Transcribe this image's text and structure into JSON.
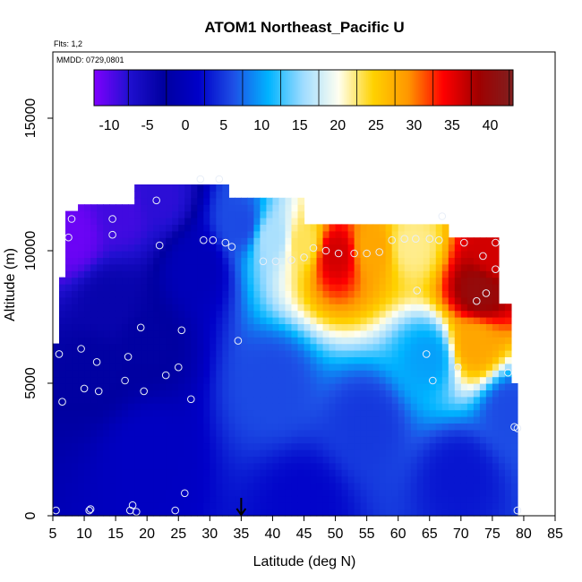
{
  "chart_data": {
    "type": "heatmap",
    "title": "ATOM1 Northeast_Pacific U",
    "subtitle_flights": "Flts: 1,2",
    "subtitle_dates": "MMDD: 0729,0801",
    "xlabel": "Latitude (deg N)",
    "ylabel": "Altitude (m)",
    "xlim": [
      5,
      85
    ],
    "ylim": [
      0,
      17500
    ],
    "x_ticks": [
      "5",
      "10",
      "15",
      "20",
      "25",
      "30",
      "35",
      "40",
      "45",
      "50",
      "55",
      "60",
      "65",
      "70",
      "75",
      "80",
      "85"
    ],
    "y_ticks": [
      "0",
      "5000",
      "10000",
      "15000"
    ],
    "colorbar": {
      "range": [
        -12,
        43
      ],
      "tick_labels": [
        "-10",
        "-5",
        "0",
        "5",
        "10",
        "15",
        "20",
        "25",
        "30",
        "35",
        "40"
      ],
      "colors": [
        "#8000ff",
        "#2010d0",
        "#0000a0",
        "#0000c8",
        "#1e50e6",
        "#00b4ff",
        "#a0dcff",
        "#fffff0",
        "#ffd200",
        "#ff9600",
        "#ff0000",
        "#a00000",
        "#802020"
      ]
    },
    "marker_latitude": 35,
    "grid": false,
    "legend": "colorbar-top-inset",
    "field": {
      "lat_range": [
        5,
        79
      ],
      "alt_range": [
        0,
        12800
      ],
      "features": [
        {
          "lat": 8,
          "alt": 10600,
          "u": -11
        },
        {
          "lat": 16,
          "alt": 11500,
          "u": -9
        },
        {
          "lat": 22,
          "alt": 12000,
          "u": -8
        },
        {
          "lat": 14,
          "alt": 8000,
          "u": -4
        },
        {
          "lat": 12,
          "alt": 5500,
          "u": -3
        },
        {
          "lat": 20,
          "alt": 6500,
          "u": -3
        },
        {
          "lat": 28,
          "alt": 9500,
          "u": 0
        },
        {
          "lat": 35,
          "alt": 11000,
          "u": 6
        },
        {
          "lat": 40,
          "alt": 10500,
          "u": 16
        },
        {
          "lat": 45,
          "alt": 10300,
          "u": 23
        },
        {
          "lat": 50,
          "alt": 9900,
          "u": 36
        },
        {
          "lat": 56,
          "alt": 10100,
          "u": 28
        },
        {
          "lat": 62,
          "alt": 10200,
          "u": 22
        },
        {
          "lat": 73,
          "alt": 8500,
          "u": 40
        },
        {
          "lat": 72,
          "alt": 6500,
          "u": 28
        },
        {
          "lat": 75,
          "alt": 9800,
          "u": 36
        },
        {
          "lat": 65,
          "alt": 6000,
          "u": 10
        },
        {
          "lat": 40,
          "alt": 5000,
          "u": 6
        },
        {
          "lat": 55,
          "alt": 3500,
          "u": 5
        },
        {
          "lat": 20,
          "alt": 2500,
          "u": 1
        },
        {
          "lat": 45,
          "alt": 500,
          "u": 2
        },
        {
          "lat": 70,
          "alt": 1500,
          "u": 3
        },
        {
          "lat": 78,
          "alt": 4000,
          "u": 6
        }
      ]
    },
    "observations": [
      {
        "lat": 5.5,
        "alt": 200
      },
      {
        "lat": 6,
        "alt": 6100
      },
      {
        "lat": 6.5,
        "alt": 4300
      },
      {
        "lat": 7.5,
        "alt": 10500
      },
      {
        "lat": 8,
        "alt": 11200
      },
      {
        "lat": 9.5,
        "alt": 6300
      },
      {
        "lat": 10,
        "alt": 4800
      },
      {
        "lat": 10.8,
        "alt": 200
      },
      {
        "lat": 11,
        "alt": 250
      },
      {
        "lat": 12,
        "alt": 5800
      },
      {
        "lat": 12.3,
        "alt": 4700
      },
      {
        "lat": 14.5,
        "alt": 10600
      },
      {
        "lat": 14.5,
        "alt": 11200
      },
      {
        "lat": 16.5,
        "alt": 5100
      },
      {
        "lat": 17,
        "alt": 6000
      },
      {
        "lat": 17.3,
        "alt": 200
      },
      {
        "lat": 17.7,
        "alt": 400
      },
      {
        "lat": 18.3,
        "alt": 150
      },
      {
        "lat": 19,
        "alt": 7100
      },
      {
        "lat": 19.5,
        "alt": 4700
      },
      {
        "lat": 21.5,
        "alt": 11900
      },
      {
        "lat": 22,
        "alt": 10200
      },
      {
        "lat": 23,
        "alt": 5300
      },
      {
        "lat": 24.5,
        "alt": 200
      },
      {
        "lat": 25,
        "alt": 5600
      },
      {
        "lat": 25.5,
        "alt": 7000
      },
      {
        "lat": 26,
        "alt": 850
      },
      {
        "lat": 27,
        "alt": 4400
      },
      {
        "lat": 28.5,
        "alt": 12700
      },
      {
        "lat": 29,
        "alt": 10400
      },
      {
        "lat": 30.5,
        "alt": 10400
      },
      {
        "lat": 31.5,
        "alt": 12700
      },
      {
        "lat": 32.5,
        "alt": 10300
      },
      {
        "lat": 33.5,
        "alt": 10150
      },
      {
        "lat": 34.5,
        "alt": 6600
      },
      {
        "lat": 38.5,
        "alt": 9600
      },
      {
        "lat": 40.5,
        "alt": 9600
      },
      {
        "lat": 43,
        "alt": 9650
      },
      {
        "lat": 45,
        "alt": 9750
      },
      {
        "lat": 46.5,
        "alt": 10100
      },
      {
        "lat": 48.5,
        "alt": 10000
      },
      {
        "lat": 50.5,
        "alt": 9900
      },
      {
        "lat": 53,
        "alt": 9900
      },
      {
        "lat": 55,
        "alt": 9900
      },
      {
        "lat": 57,
        "alt": 9950
      },
      {
        "lat": 59,
        "alt": 10400
      },
      {
        "lat": 61,
        "alt": 10450
      },
      {
        "lat": 62.8,
        "alt": 10450
      },
      {
        "lat": 63,
        "alt": 8500
      },
      {
        "lat": 64.5,
        "alt": 6100
      },
      {
        "lat": 65,
        "alt": 10450
      },
      {
        "lat": 65.5,
        "alt": 5100
      },
      {
        "lat": 66.5,
        "alt": 10400
      },
      {
        "lat": 67,
        "alt": 11300
      },
      {
        "lat": 69.5,
        "alt": 5600
      },
      {
        "lat": 70.5,
        "alt": 10300
      },
      {
        "lat": 72.5,
        "alt": 8100
      },
      {
        "lat": 73.5,
        "alt": 9800
      },
      {
        "lat": 74,
        "alt": 8400
      },
      {
        "lat": 75.5,
        "alt": 9300
      },
      {
        "lat": 75.5,
        "alt": 10300
      },
      {
        "lat": 77.5,
        "alt": 5400
      },
      {
        "lat": 78.5,
        "alt": 3350
      },
      {
        "lat": 79,
        "alt": 3300
      },
      {
        "lat": 79,
        "alt": 200
      }
    ]
  }
}
